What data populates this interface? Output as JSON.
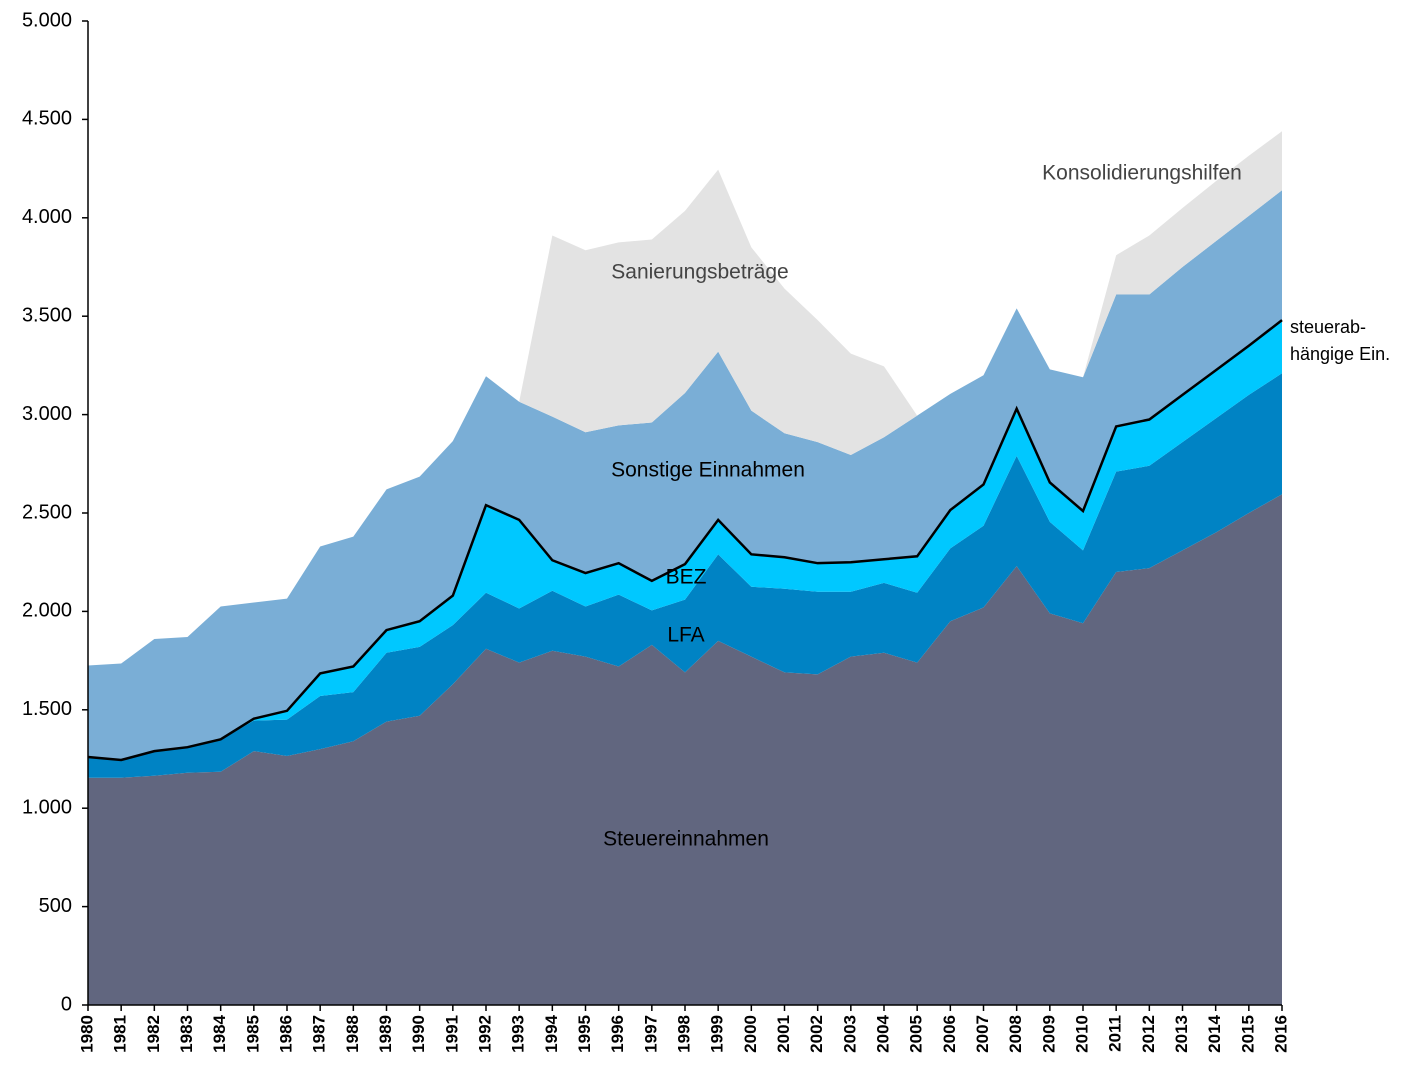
{
  "chart_data": {
    "type": "stacked_area",
    "x": [
      1980,
      1981,
      1982,
      1983,
      1984,
      1985,
      1986,
      1987,
      1988,
      1989,
      1990,
      1991,
      1992,
      1993,
      1994,
      1995,
      1996,
      1997,
      1998,
      1999,
      2000,
      2001,
      2002,
      2003,
      2004,
      2005,
      2006,
      2007,
      2008,
      2009,
      2010,
      2011,
      2012,
      2013,
      2014,
      2015,
      2016
    ],
    "series": [
      {
        "name": "Steuereinnahmen",
        "color": "#61667f",
        "values": [
          1155,
          1155,
          1165,
          1180,
          1185,
          1290,
          1265,
          1300,
          1340,
          1440,
          1470,
          1630,
          1810,
          1740,
          1800,
          1770,
          1720,
          1830,
          1690,
          1850,
          1770,
          1690,
          1680,
          1770,
          1790,
          1740,
          1950,
          2020,
          2230,
          1990,
          1940,
          2200,
          2220,
          2310,
          2400,
          2500,
          2595
        ]
      },
      {
        "name": "LFA",
        "color": "#0083c4",
        "values": [
          105,
          90,
          125,
          130,
          165,
          155,
          185,
          270,
          250,
          350,
          350,
          300,
          285,
          275,
          305,
          255,
          365,
          175,
          370,
          440,
          355,
          425,
          420,
          330,
          355,
          355,
          370,
          415,
          560,
          465,
          370,
          510,
          520,
          550,
          580,
          600,
          615
        ]
      },
      {
        "name": "BEZ",
        "color": "#00c8ff",
        "values": [
          0,
          0,
          0,
          0,
          0,
          10,
          45,
          115,
          130,
          115,
          130,
          150,
          445,
          450,
          155,
          170,
          160,
          150,
          180,
          175,
          165,
          160,
          145,
          150,
          120,
          185,
          195,
          210,
          240,
          200,
          200,
          230,
          235,
          240,
          245,
          250,
          270
        ]
      },
      {
        "name": "Sonstige Einnahmen",
        "color": "#7aaed6",
        "values": [
          465,
          490,
          570,
          560,
          675,
          590,
          570,
          645,
          660,
          715,
          735,
          785,
          655,
          600,
          730,
          715,
          700,
          805,
          870,
          855,
          730,
          630,
          615,
          545,
          620,
          715,
          590,
          555,
          510,
          575,
          680,
          670,
          635,
          650,
          655,
          660,
          660
        ]
      },
      {
        "name": "Sanierungsbeträge",
        "color": "#e3e3e3",
        "values": [
          null,
          null,
          null,
          null,
          null,
          null,
          null,
          null,
          null,
          null,
          null,
          null,
          null,
          0,
          920,
          925,
          930,
          930,
          925,
          925,
          830,
          735,
          620,
          515,
          360,
          0,
          null,
          null,
          null,
          null,
          null,
          null,
          null,
          null,
          null,
          null,
          null
        ]
      },
      {
        "name": "Konsolidierungshilfen",
        "color": "#e3e3e3",
        "values": [
          null,
          null,
          null,
          null,
          null,
          null,
          null,
          null,
          null,
          null,
          null,
          null,
          null,
          null,
          null,
          null,
          null,
          null,
          null,
          null,
          null,
          null,
          null,
          null,
          null,
          null,
          null,
          null,
          null,
          null,
          0,
          200,
          300,
          300,
          305,
          305,
          300
        ]
      }
    ],
    "annotation": [
      "steuerab-",
      "hängige Ein."
    ],
    "ylim": [
      0,
      5000
    ],
    "yticks": [
      0,
      500,
      {
        "value": 1000,
        "label": "1.000"
      },
      {
        "value": 1500,
        "label": "1.500"
      },
      {
        "value": 2000,
        "label": "2.000"
      },
      {
        "value": 2500,
        "label": "2.500"
      },
      {
        "value": 3000,
        "label": "3.000"
      },
      {
        "value": 3500,
        "label": "3.500"
      },
      {
        "value": 4000,
        "label": "4.000"
      },
      {
        "value": 4500,
        "label": "4.500"
      },
      {
        "value": 5000,
        "label": "5.000"
      }
    ],
    "line_color": "#000000"
  }
}
